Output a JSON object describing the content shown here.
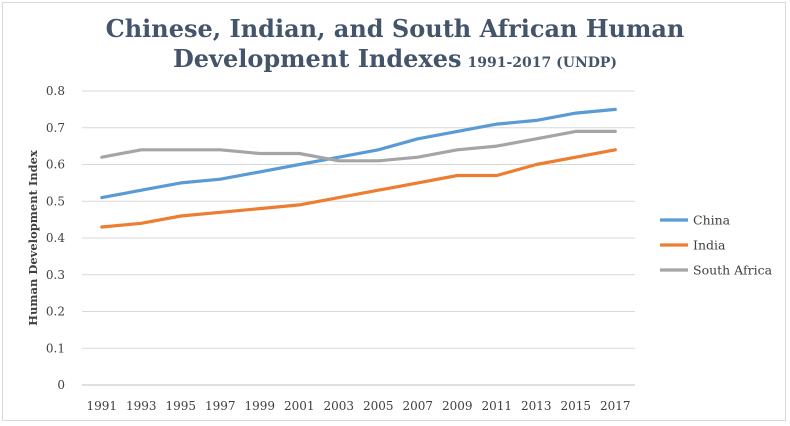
{
  "chart_data": {
    "type": "line",
    "title_line1": "Chinese, Indian, and South African Human",
    "title_line2_main": "Development Indexes",
    "title_line2_suffix": "1991-2017 (UNDP)",
    "xlabel": "",
    "ylabel": "Human Development Index",
    "categories": [
      "1991",
      "1993",
      "1995",
      "1997",
      "1999",
      "2001",
      "2003",
      "2005",
      "2007",
      "2009",
      "2011",
      "2013",
      "2015",
      "2017"
    ],
    "ylim": [
      0,
      0.8
    ],
    "yticks": [
      0,
      0.1,
      0.2,
      0.3,
      0.4,
      0.5,
      0.6,
      0.7,
      0.8
    ],
    "ytick_labels": [
      "0",
      "0.1",
      "0.2",
      "0.3",
      "0.4",
      "0.5",
      "0.6",
      "0.7",
      "0.8"
    ],
    "grid": true,
    "legend_position": "right",
    "series": [
      {
        "name": "China",
        "color": "#5b9bd5",
        "values": [
          0.51,
          0.53,
          0.55,
          0.56,
          0.58,
          0.6,
          0.62,
          0.64,
          0.67,
          0.69,
          0.71,
          0.72,
          0.74,
          0.75
        ]
      },
      {
        "name": "India",
        "color": "#ed7d31",
        "values": [
          0.43,
          0.44,
          0.46,
          0.47,
          0.48,
          0.49,
          0.51,
          0.53,
          0.55,
          0.57,
          0.57,
          0.6,
          0.62,
          0.64
        ]
      },
      {
        "name": "South Africa",
        "color": "#a5a5a5",
        "values": [
          0.62,
          0.64,
          0.64,
          0.64,
          0.63,
          0.63,
          0.61,
          0.61,
          0.62,
          0.64,
          0.65,
          0.67,
          0.69,
          0.69
        ]
      }
    ]
  }
}
